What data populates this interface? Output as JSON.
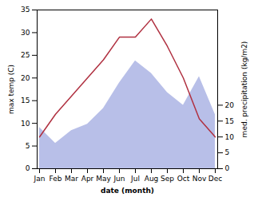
{
  "chart_data": {
    "type": "line",
    "categories": [
      "Jan",
      "Feb",
      "Mar",
      "Apr",
      "May",
      "Jun",
      "Jul",
      "Aug",
      "Sep",
      "Oct",
      "Nov",
      "Dec"
    ],
    "xlabel": "date (month)",
    "ylabel": "max temp (C)",
    "y2label": "med. precipitation (kg/m2)",
    "ylim": [
      0,
      35
    ],
    "yticks": [
      0,
      5,
      10,
      15,
      20,
      25,
      30,
      35
    ],
    "y2lim": [
      0,
      50
    ],
    "y2ticks": [
      0,
      5,
      10,
      15,
      20
    ],
    "series": [
      {
        "type": "area",
        "axis": "y2",
        "color": "#b8bfe8",
        "values": [
          13,
          8,
          12,
          14,
          19,
          27,
          34,
          30,
          24,
          20,
          29,
          17
        ]
      },
      {
        "type": "line",
        "color": "#b03040",
        "values": [
          7,
          12,
          16,
          20,
          24,
          29,
          29,
          33,
          27,
          20,
          11,
          7
        ]
      }
    ]
  }
}
